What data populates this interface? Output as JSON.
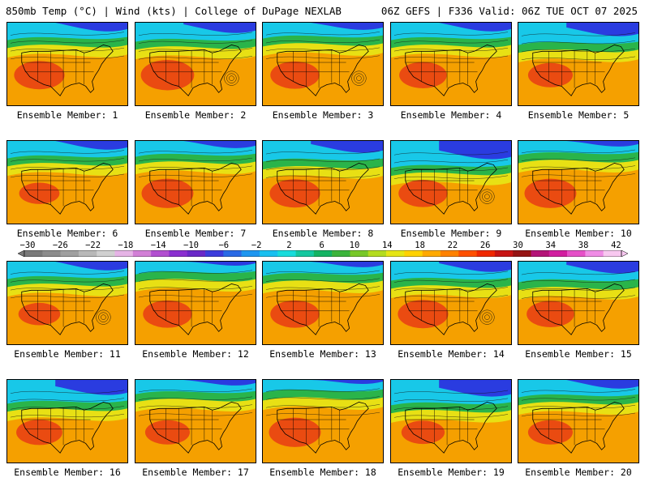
{
  "header": {
    "left": "850mb Temp (°C) | Wind (kts) | College of DuPage NEXLAB",
    "right": "06Z GEFS | F336 Valid: 06Z TUE OCT 07 2025"
  },
  "panels": [
    {
      "label": "Ensemble Member: 1",
      "cold": 0.3,
      "hot": 0.75,
      "low": false
    },
    {
      "label": "Ensemble Member: 2",
      "cold": 0.35,
      "hot": 0.85,
      "low": true
    },
    {
      "label": "Ensemble Member: 3",
      "cold": 0.25,
      "hot": 0.7,
      "low": true
    },
    {
      "label": "Ensemble Member: 4",
      "cold": 0.3,
      "hot": 0.65,
      "low": false
    },
    {
      "label": "Ensemble Member: 5",
      "cold": 0.45,
      "hot": 0.55,
      "low": false
    },
    {
      "label": "Ensemble Member: 6",
      "cold": 0.3,
      "hot": 0.4,
      "low": false
    },
    {
      "label": "Ensemble Member: 7",
      "cold": 0.25,
      "hot": 0.8,
      "low": false
    },
    {
      "label": "Ensemble Member: 8",
      "cold": 0.4,
      "hot": 0.75,
      "low": false
    },
    {
      "label": "Ensemble Member: 9",
      "cold": 0.6,
      "hot": 0.7,
      "low": true
    },
    {
      "label": "Ensemble Member: 10",
      "cold": 0.2,
      "hot": 0.8,
      "low": false
    },
    {
      "label": "Ensemble Member: 11",
      "cold": 0.3,
      "hot": 0.45,
      "low": true
    },
    {
      "label": "Ensemble Member: 12",
      "cold": 0.15,
      "hot": 0.7,
      "low": false
    },
    {
      "label": "Ensemble Member: 13",
      "cold": 0.2,
      "hot": 0.7,
      "low": false
    },
    {
      "label": "Ensemble Member: 14",
      "cold": 0.35,
      "hot": 0.75,
      "low": true
    },
    {
      "label": "Ensemble Member: 15",
      "cold": 0.4,
      "hot": 0.65,
      "low": false
    },
    {
      "label": "Ensemble Member: 16",
      "cold": 0.5,
      "hot": 0.6,
      "low": false
    },
    {
      "label": "Ensemble Member: 17",
      "cold": 0.2,
      "hot": 0.55,
      "low": false
    },
    {
      "label": "Ensemble Member: 18",
      "cold": 0.15,
      "hot": 0.8,
      "low": false
    },
    {
      "label": "Ensemble Member: 19",
      "cold": 0.55,
      "hot": 0.5,
      "low": false
    },
    {
      "label": "Ensemble Member: 20",
      "cold": 0.3,
      "hot": 0.55,
      "low": false
    }
  ],
  "colorbar": {
    "tick_labels": [
      "−30",
      "−26",
      "−22",
      "−18",
      "−14",
      "−10",
      "−6",
      "−2",
      "2",
      "6",
      "10",
      "14",
      "18",
      "22",
      "26",
      "30",
      "34",
      "38",
      "42"
    ],
    "colors": [
      "#7a7a7a",
      "#8c8c8c",
      "#a0a0a0",
      "#b8b8b8",
      "#d0d0d0",
      "#e6b3e6",
      "#d27fd6",
      "#b24fd0",
      "#8a2fd0",
      "#6a28c8",
      "#3c3cdc",
      "#2a6ae6",
      "#1e96f0",
      "#18c0f0",
      "#18dcdc",
      "#14c8a0",
      "#14b464",
      "#3cb43c",
      "#78c828",
      "#b4dc1e",
      "#e6e614",
      "#ffd200",
      "#ffaa00",
      "#ff8200",
      "#ff5000",
      "#f02800",
      "#c81414",
      "#961414",
      "#b41478",
      "#d21ea0",
      "#e650c8",
      "#f08ce6",
      "#f8c8f0"
    ]
  },
  "temp_colors": {
    "cold": "#2a3ce0",
    "cyan": "#18c8e8",
    "green": "#2ab44a",
    "yellow": "#e8e014",
    "orange": "#f5a000",
    "red": "#e83c14"
  }
}
